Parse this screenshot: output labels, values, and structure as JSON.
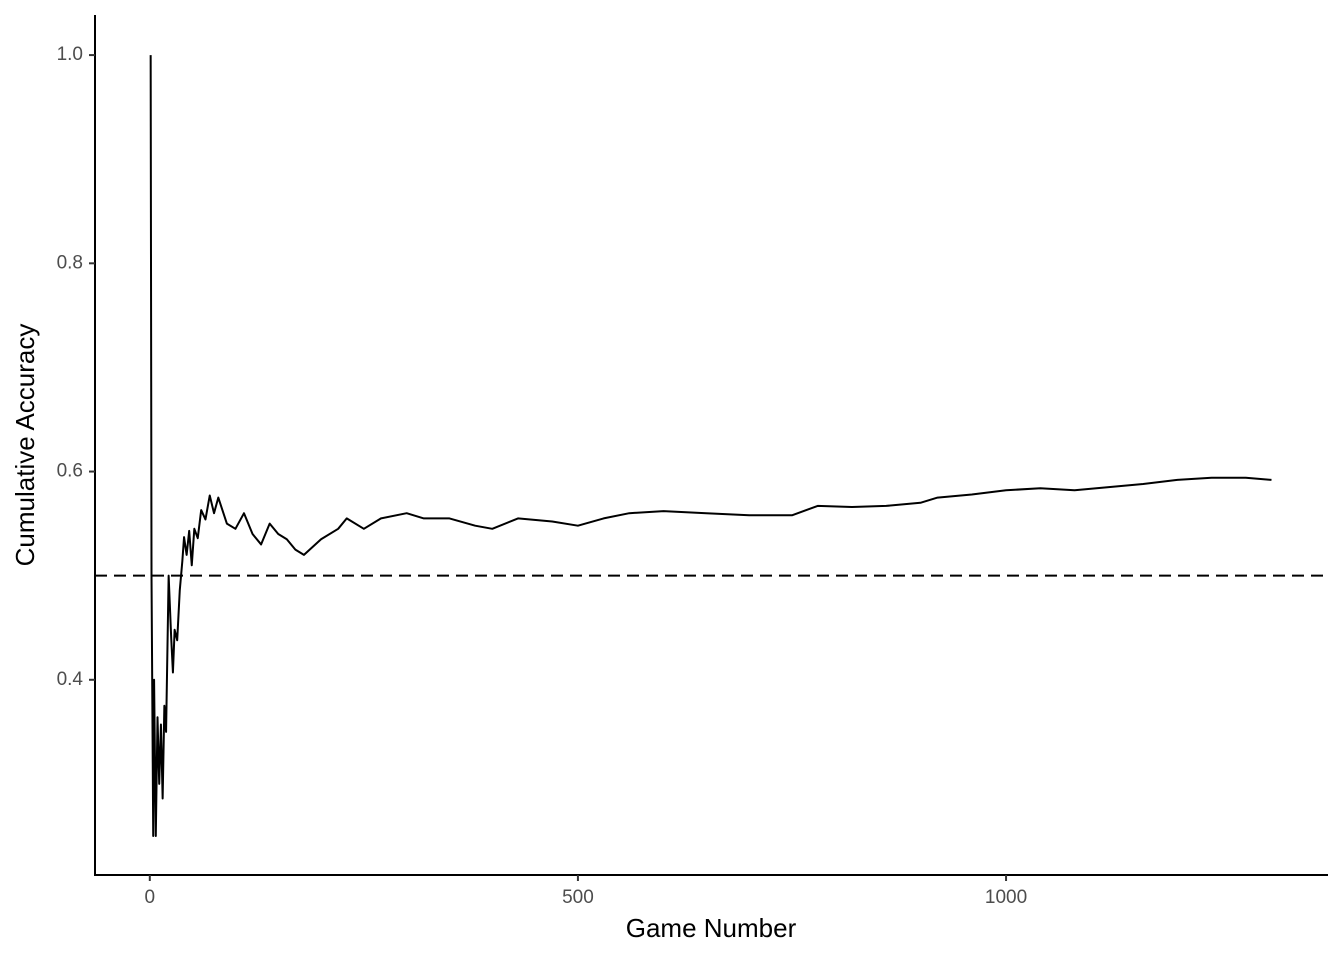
{
  "chart_data": {
    "type": "line",
    "x_label": "Game Number",
    "y_label": "Cumulative Accuracy",
    "x": [
      1,
      2,
      4,
      5,
      7,
      9,
      11,
      13,
      15,
      17,
      19,
      22,
      25,
      27,
      29,
      32,
      35,
      38,
      40,
      43,
      46,
      49,
      52,
      56,
      60,
      65,
      70,
      75,
      80,
      90,
      100,
      110,
      120,
      130,
      140,
      150,
      160,
      170,
      180,
      200,
      220,
      230,
      250,
      270,
      300,
      320,
      350,
      380,
      400,
      430,
      470,
      500,
      530,
      560,
      600,
      650,
      700,
      750,
      780,
      820,
      860,
      900,
      920,
      960,
      1000,
      1040,
      1080,
      1120,
      1160,
      1200,
      1240,
      1280,
      1310
    ],
    "series": [
      {
        "color": "#000000",
        "values": [
          1.0,
          0.5,
          0.25,
          0.4,
          0.25,
          0.364,
          0.3,
          0.357,
          0.286,
          0.375,
          0.35,
          0.5,
          0.44,
          0.407,
          0.448,
          0.438,
          0.486,
          0.514,
          0.537,
          0.52,
          0.543,
          0.51,
          0.545,
          0.536,
          0.563,
          0.554,
          0.577,
          0.56,
          0.575,
          0.55,
          0.545,
          0.56,
          0.54,
          0.53,
          0.55,
          0.54,
          0.535,
          0.525,
          0.52,
          0.535,
          0.545,
          0.555,
          0.545,
          0.555,
          0.56,
          0.555,
          0.555,
          0.548,
          0.545,
          0.555,
          0.552,
          0.548,
          0.555,
          0.56,
          0.562,
          0.56,
          0.558,
          0.558,
          0.567,
          0.566,
          0.567,
          0.57,
          0.575,
          0.578,
          0.582,
          0.584,
          0.582,
          0.585,
          0.588,
          0.592,
          0.594,
          0.594,
          0.592
        ]
      }
    ],
    "reference_line": 0.5,
    "xlim": [
      -64,
      1376
    ],
    "ylim": [
      0.2125,
      1.0385
    ],
    "xticks": [
      0,
      500,
      1000
    ],
    "yticks": [
      0.4,
      0.6,
      0.8,
      {
        "value": 1,
        "label": "1.0"
      }
    ]
  }
}
